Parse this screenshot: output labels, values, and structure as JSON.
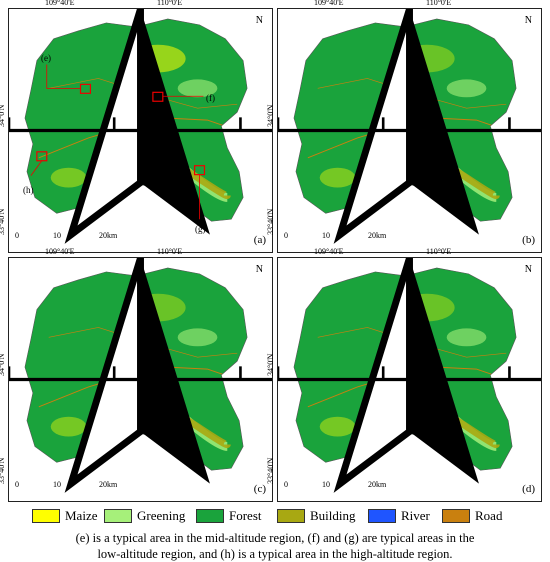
{
  "ticks": {
    "lon": [
      "109°40'E",
      "110°0'E"
    ],
    "lat": [
      "34°0'N",
      "33°40'N"
    ]
  },
  "north": "N",
  "scale": {
    "zero": "0",
    "ten": "10",
    "twenty": "20km"
  },
  "panels": [
    {
      "letter": "(a)"
    },
    {
      "letter": "(b)"
    },
    {
      "letter": "(c)"
    },
    {
      "letter": "(d)"
    }
  ],
  "annotations": {
    "e": "(e)",
    "f": "(f)",
    "g": "(g)",
    "h": "(h)"
  },
  "legend": [
    {
      "label": "Maize",
      "color": "#ffff00"
    },
    {
      "label": "Greening",
      "color": "#a6f07a"
    },
    {
      "label": "Forest",
      "color": "#1aa33c"
    },
    {
      "label": "Building",
      "color": "#a8a812"
    },
    {
      "label": "River",
      "color": "#1f55ff"
    },
    {
      "label": "Road",
      "color": "#c9800f"
    }
  ],
  "caption": {
    "line1": "(e) is a typical area in the mid-altitude region, (f) and (g) are typical areas in the",
    "line2": "low-altitude region, and (h) is a typical area in the high-altitude region."
  }
}
